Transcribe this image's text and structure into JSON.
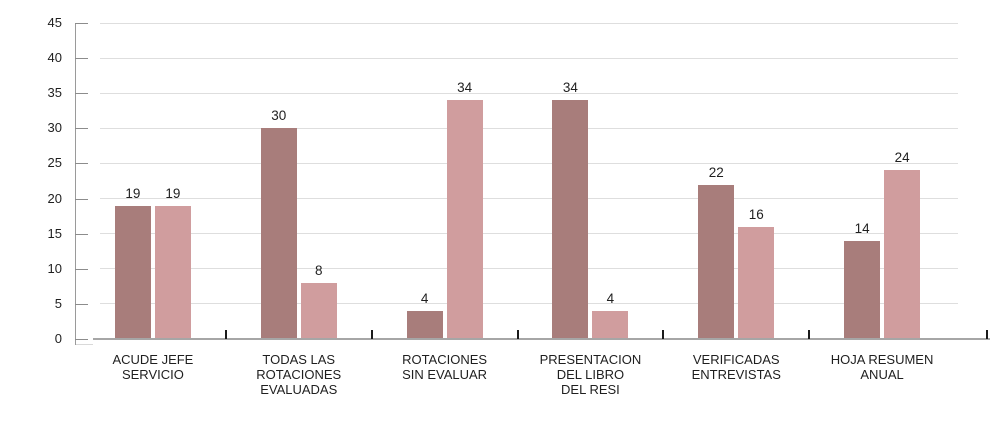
{
  "chart_data": {
    "type": "bar",
    "title": "",
    "categories": [
      "ACUDE JEFE\nSERVICIO",
      "TODAS LAS\nROTACIONES\nEVALUADAS",
      "ROTACIONES\nSIN EVALUAR",
      "PRESENTACION\nDEL LIBRO\nDEL RESI",
      "VERIFICADAS\nENTREVISTAS",
      "HOJA RESUMEN\nANUAL"
    ],
    "series": [
      {
        "color": "#A87D7B",
        "values": [
          19,
          30,
          4,
          34,
          22,
          14
        ]
      },
      {
        "color": "#D09D9E",
        "values": [
          19,
          8,
          34,
          4,
          16,
          24
        ]
      }
    ],
    "data_labels": true,
    "y_tick_labels": [
      "0",
      "5",
      "10",
      "15",
      "20",
      "25",
      "30",
      "35",
      "40",
      "45"
    ],
    "ylim": [
      0,
      45
    ],
    "ytick_step": 5,
    "grid": true,
    "legend": "none"
  },
  "colors": {
    "gridline": "#DEDEDE",
    "y_axis_line": "#9A9A9A",
    "y_tick": "#8C8C8C",
    "baseline": "#A6A6A6",
    "axis_hook": "#D9D9D9",
    "category_tick": "#1A1A1A",
    "label_text": "#1F1F1F"
  }
}
